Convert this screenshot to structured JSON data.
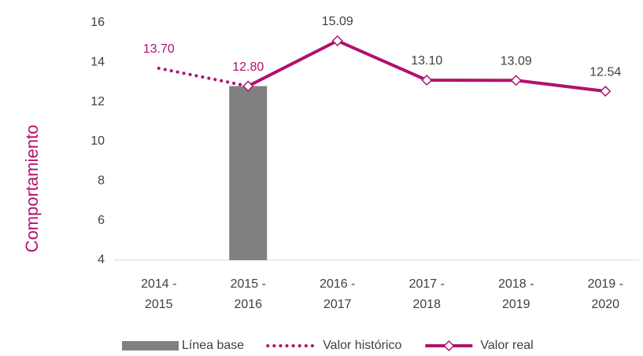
{
  "chart_data": {
    "type": "line",
    "y_label": "Comportamiento",
    "categories": [
      [
        "2014 -",
        "2015"
      ],
      [
        "2015 -",
        "2016"
      ],
      [
        "2016 -",
        "2017"
      ],
      [
        "2017 -",
        "2018"
      ],
      [
        "2018 -",
        "2019"
      ],
      [
        "2019 -",
        "2020"
      ]
    ],
    "ylim": [
      4,
      16
    ],
    "yticks": [
      4,
      6,
      8,
      10,
      12,
      14,
      16
    ],
    "grid": false,
    "legend": "bottom",
    "series": [
      {
        "name": "Línea base",
        "type": "bar",
        "color": "#808080",
        "values": [
          null,
          12.8,
          null,
          null,
          null,
          null
        ]
      },
      {
        "name": "Valor histórico",
        "type": "dotted",
        "color": "#b0126e",
        "values": [
          13.7,
          12.8,
          null,
          null,
          null,
          null
        ],
        "value_labels": [
          "13.70",
          "12.80",
          null,
          null,
          null,
          null
        ]
      },
      {
        "name": "Valor real",
        "type": "line",
        "color": "#b0126e",
        "values": [
          null,
          12.8,
          15.09,
          13.1,
          13.09,
          12.54
        ],
        "value_labels": [
          null,
          null,
          "15.09",
          "13.10",
          "13.09",
          "12.54"
        ]
      }
    ]
  }
}
